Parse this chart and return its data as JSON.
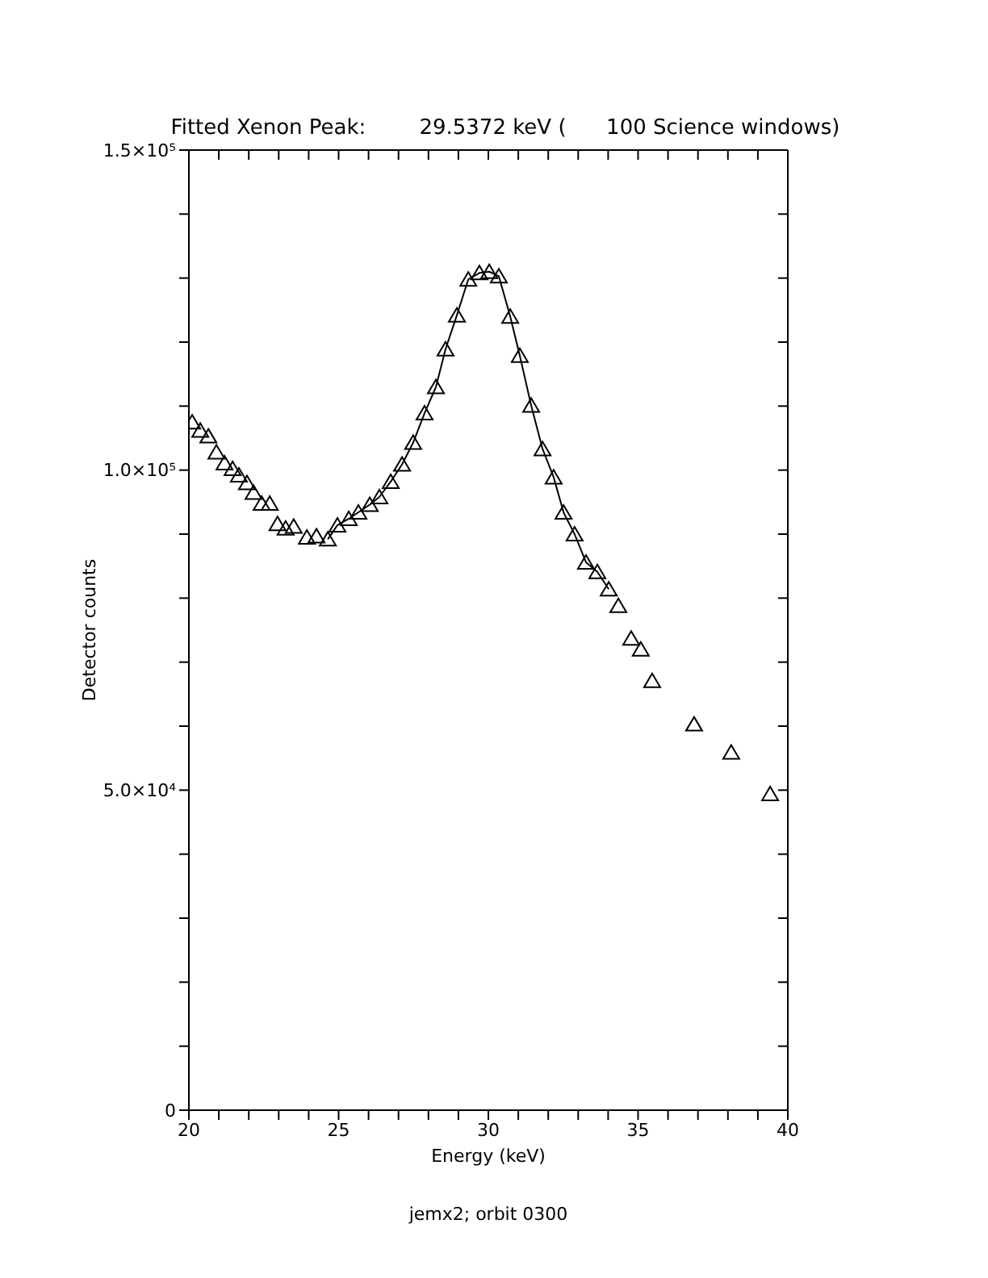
{
  "chart_data": {
    "type": "scatter",
    "title": "Fitted Xenon Peak:        29.5372 keV (      100 Science windows)",
    "xlabel": "Energy (keV)",
    "ylabel": "Detector counts",
    "annotations": [
      "jemx2; orbit 0300"
    ],
    "xlim": [
      20,
      40
    ],
    "ylim": [
      0,
      150000
    ],
    "xticks": [
      20,
      {
        "value": 21,
        "label": null
      },
      {
        "value": 22,
        "label": null
      },
      {
        "value": 23,
        "label": null
      },
      {
        "value": 24,
        "label": null
      },
      25,
      {
        "value": 26,
        "label": null
      },
      {
        "value": 27,
        "label": null
      },
      {
        "value": 28,
        "label": null
      },
      {
        "value": 29,
        "label": null
      },
      30,
      {
        "value": 31,
        "label": null
      },
      {
        "value": 32,
        "label": null
      },
      {
        "value": 33,
        "label": null
      },
      {
        "value": 34,
        "label": null
      },
      35,
      {
        "value": 36,
        "label": null
      },
      {
        "value": 37,
        "label": null
      },
      {
        "value": 38,
        "label": null
      },
      {
        "value": 39,
        "label": null
      },
      40
    ],
    "yticks": [
      0,
      {
        "value": 10000,
        "label": null
      },
      {
        "value": 20000,
        "label": null
      },
      {
        "value": 30000,
        "label": null
      },
      {
        "value": 40000,
        "label": null
      },
      {
        "value": 50000,
        "label": "5.0×10⁴"
      },
      {
        "value": 60000,
        "label": null
      },
      {
        "value": 70000,
        "label": null
      },
      {
        "value": 80000,
        "label": null
      },
      {
        "value": 90000,
        "label": null
      },
      {
        "value": 100000,
        "label": "1.0×10⁵"
      },
      {
        "value": 110000,
        "label": null
      },
      {
        "value": 120000,
        "label": null
      },
      {
        "value": 130000,
        "label": null
      },
      {
        "value": 140000,
        "label": null
      },
      {
        "value": 150000,
        "label": "1.5×10⁵"
      }
    ],
    "legend": false,
    "series": [
      {
        "color": "#000000",
        "marker": "triangle",
        "x": [
          20.11,
          20.38,
          20.65,
          20.92,
          21.19,
          21.46,
          21.67,
          21.94,
          22.16,
          22.43,
          22.7,
          22.96,
          23.23,
          23.5,
          23.94,
          24.26,
          24.64,
          24.96,
          25.34,
          25.66,
          26.04,
          26.36,
          26.74,
          27.12,
          27.49,
          27.87,
          28.25,
          28.57,
          28.95,
          29.33,
          29.7,
          30.03,
          30.35,
          30.73,
          31.05,
          31.43,
          31.81,
          32.18,
          32.51,
          32.88,
          33.26,
          33.64,
          34.02,
          34.34,
          34.77,
          35.09,
          35.47,
          36.87,
          38.11,
          39.41
        ],
        "values": [
          107500,
          106200,
          105300,
          102800,
          101100,
          100200,
          99200,
          98000,
          96500,
          94800,
          94800,
          91600,
          90900,
          91200,
          89500,
          89700,
          89200,
          91400,
          92400,
          93400,
          94600,
          95800,
          98200,
          100900,
          104300,
          108900,
          113000,
          118900,
          124200,
          129800,
          130800,
          131000,
          130300,
          124000,
          117900,
          110100,
          103300,
          98900,
          93400,
          90000,
          85600,
          84100,
          81400,
          78800,
          73700,
          72000,
          67100,
          60300,
          55900,
          49400
        ]
      },
      {
        "type": "line",
        "color": "#000000",
        "marker": "none",
        "line_style": "solid",
        "x": [
          24.64,
          24.96,
          25.34,
          25.66,
          26.04,
          26.36,
          26.74,
          27.12,
          27.49,
          27.87,
          28.25,
          28.57,
          28.95,
          29.33,
          29.7,
          30.03,
          30.35,
          30.73,
          31.05,
          31.43,
          31.81,
          32.18,
          32.51,
          32.88,
          33.26,
          33.64,
          34.02
        ],
        "values": [
          89200,
          91400,
          92400,
          93400,
          94600,
          95800,
          98200,
          100900,
          104300,
          108900,
          113000,
          118900,
          124200,
          129800,
          130800,
          131000,
          130300,
          124000,
          117900,
          110100,
          103300,
          98900,
          93400,
          90000,
          85600,
          84100,
          81400
        ]
      }
    ]
  }
}
